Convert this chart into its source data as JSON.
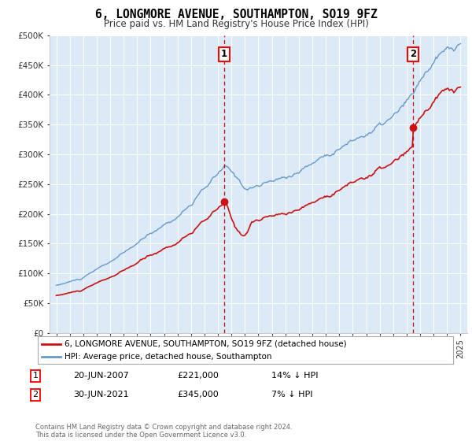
{
  "title": "6, LONGMORE AVENUE, SOUTHAMPTON, SO19 9FZ",
  "subtitle": "Price paid vs. HM Land Registry's House Price Index (HPI)",
  "bg_color": "#dce9f7",
  "ylabel_ticks": [
    "£0",
    "£50K",
    "£100K",
    "£150K",
    "£200K",
    "£250K",
    "£300K",
    "£350K",
    "£400K",
    "£450K",
    "£500K"
  ],
  "ytick_values": [
    0,
    50000,
    100000,
    150000,
    200000,
    250000,
    300000,
    350000,
    400000,
    450000,
    500000
  ],
  "hpi_color": "#6699cc",
  "price_color": "#cc1111",
  "vline_color": "#cc0000",
  "sale1_t": 2007.47,
  "sale2_t": 2021.47,
  "sale1_price": 221000,
  "sale2_price": 345000,
  "legend_label1": "6, LONGMORE AVENUE, SOUTHAMPTON, SO19 9FZ (detached house)",
  "legend_label2": "HPI: Average price, detached house, Southampton",
  "table_row1_num": "1",
  "table_row1_date": "20-JUN-2007",
  "table_row1_price": "£221,000",
  "table_row1_hpi": "14% ↓ HPI",
  "table_row2_num": "2",
  "table_row2_date": "30-JUN-2021",
  "table_row2_price": "£345,000",
  "table_row2_hpi": "7% ↓ HPI",
  "footnote": "Contains HM Land Registry data © Crown copyright and database right 2024.\nThis data is licensed under the Open Government Licence v3.0.",
  "xmin": 1994.5,
  "xmax": 2025.5,
  "ymin": 0,
  "ymax": 500000
}
